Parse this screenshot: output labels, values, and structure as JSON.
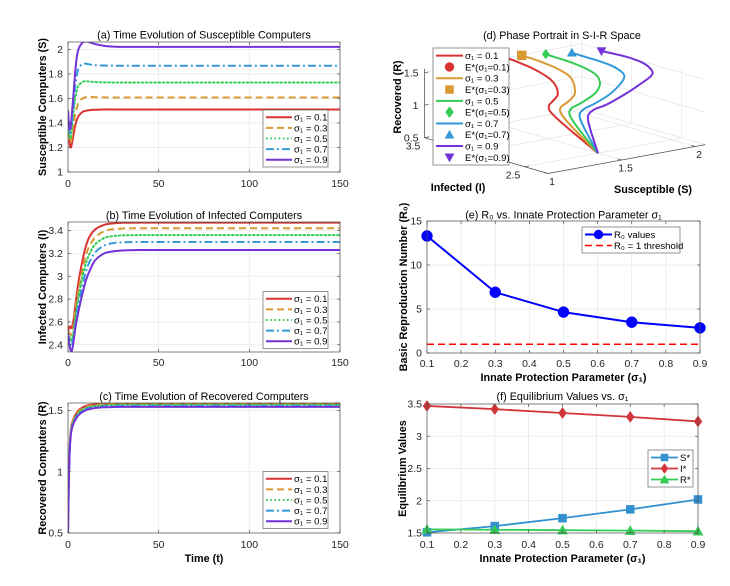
{
  "chart_data": [
    {
      "panel": "a",
      "type": "line",
      "title": "(a) Time Evolution of Susceptible Computers",
      "xlabel": "",
      "ylabel": "Susceptible Computers (S)",
      "xlim": [
        0,
        150
      ],
      "ylim": [
        1,
        2.06
      ],
      "xticks": [
        0,
        50,
        100,
        150
      ],
      "xtick_labels": [
        "0",
        "50",
        "100",
        "150"
      ],
      "yticks": [
        1,
        1.2,
        1.4,
        1.6,
        1.8,
        2
      ],
      "ytick_labels": [
        "1",
        "1.2",
        "1.4",
        "1.6",
        "1.8",
        "2"
      ],
      "grid": true,
      "legend_position": "bottom-right",
      "x": [
        0,
        0.5,
        1,
        1.5,
        2,
        3,
        4,
        5,
        6,
        8,
        10,
        12,
        15,
        20,
        25,
        30,
        40,
        60,
        100,
        150
      ],
      "series": [
        {
          "name": "σ₁ = 0.1",
          "color": "#d93333",
          "style": "solid",
          "values": [
            1.5,
            1.31,
            1.22,
            1.2,
            1.22,
            1.3,
            1.38,
            1.43,
            1.46,
            1.49,
            1.5,
            1.505,
            1.508,
            1.51,
            1.51,
            1.51,
            1.51,
            1.51,
            1.51,
            1.51
          ]
        },
        {
          "name": "σ₁ = 0.3",
          "color": "#d99933",
          "style": "dashed",
          "values": [
            1.5,
            1.33,
            1.25,
            1.24,
            1.28,
            1.38,
            1.47,
            1.53,
            1.57,
            1.6,
            1.61,
            1.612,
            1.61,
            1.608,
            1.607,
            1.607,
            1.607,
            1.607,
            1.607,
            1.607
          ]
        },
        {
          "name": "σ₁ = 0.5",
          "color": "#33cc55",
          "style": "dotted",
          "values": [
            1.5,
            1.35,
            1.28,
            1.28,
            1.34,
            1.48,
            1.6,
            1.67,
            1.71,
            1.735,
            1.74,
            1.737,
            1.733,
            1.731,
            1.73,
            1.73,
            1.73,
            1.73,
            1.73,
            1.73
          ]
        },
        {
          "name": "σ₁ = 0.7",
          "color": "#3399d9",
          "style": "dashdot",
          "values": [
            1.5,
            1.38,
            1.32,
            1.33,
            1.4,
            1.55,
            1.7,
            1.8,
            1.85,
            1.882,
            1.883,
            1.877,
            1.871,
            1.868,
            1.867,
            1.866,
            1.866,
            1.866,
            1.866,
            1.866
          ]
        },
        {
          "name": "σ₁ = 0.9",
          "color": "#7333d9",
          "style": "solid",
          "values": [
            1.5,
            1.4,
            1.35,
            1.37,
            1.45,
            1.63,
            1.82,
            1.95,
            2.01,
            2.055,
            2.064,
            2.058,
            2.043,
            2.028,
            2.022,
            2.02,
            2.02,
            2.02,
            2.02,
            2.02
          ]
        }
      ]
    },
    {
      "panel": "b",
      "type": "line",
      "title": "(b) Time Evolution of Infected Computers",
      "xlabel": "",
      "ylabel": "Infected Computers (I)",
      "xlim": [
        0,
        150
      ],
      "ylim": [
        2.337,
        3.475
      ],
      "xticks": [
        0,
        50,
        100,
        150
      ],
      "xtick_labels": [
        "0",
        "50",
        "100",
        "150"
      ],
      "yticks": [
        2.4,
        2.6,
        2.8,
        3,
        3.2,
        3.4
      ],
      "ytick_labels": [
        "2.4",
        "2.6",
        "2.8",
        "3",
        "3.2",
        "3.4"
      ],
      "grid": true,
      "legend_position": "bottom-right",
      "x": [
        0,
        0.5,
        1,
        1.5,
        2,
        3,
        4,
        5,
        6,
        8,
        10,
        12,
        15,
        20,
        25,
        30,
        40,
        60,
        100,
        150
      ],
      "series": [
        {
          "name": "σ₁ = 0.1",
          "color": "#d93333",
          "style": "solid",
          "values": [
            2.5,
            2.55,
            2.56,
            2.55,
            2.55,
            2.61,
            2.74,
            2.86,
            2.97,
            3.14,
            3.27,
            3.35,
            3.41,
            3.45,
            3.463,
            3.468,
            3.47,
            3.47,
            3.47,
            3.47
          ]
        },
        {
          "name": "σ₁ = 0.3",
          "color": "#d99933",
          "style": "dashed",
          "values": [
            2.5,
            2.51,
            2.5,
            2.49,
            2.49,
            2.56,
            2.69,
            2.8,
            2.9,
            3.06,
            3.19,
            3.27,
            3.34,
            3.395,
            3.412,
            3.418,
            3.42,
            3.42,
            3.42,
            3.42
          ]
        },
        {
          "name": "σ₁ = 0.5",
          "color": "#33cc55",
          "style": "dotted",
          "values": [
            2.5,
            2.48,
            2.46,
            2.44,
            2.44,
            2.51,
            2.63,
            2.74,
            2.84,
            3.0,
            3.12,
            3.2,
            3.28,
            3.335,
            3.352,
            3.358,
            3.36,
            3.36,
            3.36,
            3.36
          ]
        },
        {
          "name": "σ₁ = 0.7",
          "color": "#3399d9",
          "style": "dashdot",
          "values": [
            2.5,
            2.46,
            2.42,
            2.39,
            2.39,
            2.46,
            2.58,
            2.68,
            2.77,
            2.92,
            3.05,
            3.13,
            3.21,
            3.27,
            3.29,
            3.297,
            3.3,
            3.3,
            3.3,
            3.3
          ]
        },
        {
          "name": "σ₁ = 0.9",
          "color": "#7333d9",
          "style": "solid",
          "values": [
            2.5,
            2.43,
            2.38,
            2.35,
            2.34,
            2.42,
            2.54,
            2.63,
            2.71,
            2.85,
            2.97,
            3.05,
            3.14,
            3.2,
            3.218,
            3.226,
            3.23,
            3.23,
            3.23,
            3.23
          ]
        }
      ]
    },
    {
      "panel": "c",
      "type": "line",
      "title": "(c) Time Evolution of Recovered Computers",
      "xlabel": "Time (t)",
      "ylabel": "Recovered Computers (R)",
      "xlim": [
        0,
        150
      ],
      "ylim": [
        0.5,
        1.56
      ],
      "xticks": [
        0,
        50,
        100,
        150
      ],
      "xtick_labels": [
        "0",
        "50",
        "100",
        "150"
      ],
      "yticks": [
        0.5,
        1,
        1.5
      ],
      "ytick_labels": [
        "0.5",
        "1",
        "1.5"
      ],
      "grid": true,
      "legend_position": "bottom-right",
      "x": [
        0,
        0.5,
        1,
        1.5,
        2,
        3,
        4,
        5,
        6,
        8,
        10,
        12,
        15,
        20,
        25,
        30,
        40,
        60,
        100,
        150
      ],
      "series": [
        {
          "name": "σ₁ = 0.1",
          "color": "#d93333",
          "style": "solid",
          "values": [
            0.5,
            0.98,
            1.22,
            1.33,
            1.38,
            1.43,
            1.46,
            1.485,
            1.503,
            1.523,
            1.537,
            1.545,
            1.55,
            1.554,
            1.556,
            1.556,
            1.556,
            1.556,
            1.556,
            1.556
          ]
        },
        {
          "name": "σ₁ = 0.3",
          "color": "#d99933",
          "style": "dashed",
          "values": [
            0.5,
            0.97,
            1.21,
            1.32,
            1.37,
            1.42,
            1.45,
            1.475,
            1.493,
            1.514,
            1.528,
            1.537,
            1.543,
            1.548,
            1.55,
            1.55,
            1.55,
            1.55,
            1.55,
            1.55
          ]
        },
        {
          "name": "σ₁ = 0.5",
          "color": "#33cc55",
          "style": "dotted",
          "values": [
            0.5,
            0.96,
            1.2,
            1.31,
            1.36,
            1.41,
            1.44,
            1.465,
            1.483,
            1.505,
            1.52,
            1.529,
            1.536,
            1.542,
            1.544,
            1.545,
            1.545,
            1.545,
            1.545,
            1.545
          ]
        },
        {
          "name": "σ₁ = 0.7",
          "color": "#3399d9",
          "style": "dashdot",
          "values": [
            0.5,
            0.95,
            1.19,
            1.3,
            1.35,
            1.4,
            1.43,
            1.455,
            1.473,
            1.496,
            1.511,
            1.52,
            1.528,
            1.534,
            1.536,
            1.537,
            1.537,
            1.537,
            1.537,
            1.537
          ]
        },
        {
          "name": "σ₁ = 0.9",
          "color": "#7333d9",
          "style": "solid",
          "values": [
            0.5,
            0.94,
            1.18,
            1.29,
            1.34,
            1.39,
            1.42,
            1.445,
            1.463,
            1.487,
            1.502,
            1.511,
            1.519,
            1.525,
            1.527,
            1.528,
            1.528,
            1.528,
            1.528,
            1.528
          ]
        }
      ]
    },
    {
      "panel": "d",
      "type": "line3d",
      "title": "(d) Phase Portrait in S-I-R Space",
      "xlabel": "Susceptible (S)",
      "ylabel": "Infected (I)",
      "zlabel": "Recovered (R)",
      "xlim": [
        1,
        2.07
      ],
      "ylim": [
        2.265,
        3.5
      ],
      "zlim": [
        0.5,
        1.56
      ],
      "xticks": [
        1,
        1.5,
        2
      ],
      "xtick_labels": [
        "1",
        "1.5",
        "2"
      ],
      "yticks": [
        2.5,
        3,
        3.5
      ],
      "ytick_labels": [
        "2.5",
        "",
        "3.5"
      ],
      "zticks": [
        0.5,
        1,
        1.5
      ],
      "ztick_labels": [
        "0.5",
        "1",
        "1.5"
      ],
      "grid": true,
      "legend_position": "top-left",
      "initial_point": {
        "S": 1.5,
        "I": 2.5,
        "R": 0.5
      },
      "series": [
        {
          "name": "σ₁ = 0.1",
          "color": "#d93333",
          "equilibrium": {
            "label": "E*(σ₁=0.1)",
            "marker": "circle",
            "S": 1.51,
            "I": 3.47,
            "R": 1.556
          }
        },
        {
          "name": "σ₁ = 0.3",
          "color": "#d99933",
          "equilibrium": {
            "label": "E*(σ₁=0.3)",
            "marker": "square",
            "S": 1.607,
            "I": 3.42,
            "R": 1.55
          }
        },
        {
          "name": "σ₁ = 0.5",
          "color": "#33cc55",
          "equilibrium": {
            "label": "E*(σ₁=0.5)",
            "marker": "diamond",
            "S": 1.73,
            "I": 3.36,
            "R": 1.545
          }
        },
        {
          "name": "σ₁ = 0.7",
          "color": "#3399d9",
          "equilibrium": {
            "label": "E*(σ₁=0.7)",
            "marker": "triangle-up",
            "S": 1.866,
            "I": 3.3,
            "R": 1.537
          }
        },
        {
          "name": "σ₁ = 0.9",
          "color": "#7333d9",
          "equilibrium": {
            "label": "E*(σ₁=0.9)",
            "marker": "triangle-down",
            "S": 2.02,
            "I": 3.23,
            "R": 1.528
          }
        }
      ]
    },
    {
      "panel": "e",
      "type": "line",
      "title": "(e) R₀ vs. Innate Protection Parameter σ₁",
      "xlabel": "Innate Protection Parameter (σ₁)",
      "ylabel": "Basic Reproduction Number (R₀)",
      "xlim": [
        0.1,
        0.9
      ],
      "ylim": [
        0,
        15
      ],
      "xticks": [
        0.1,
        0.2,
        0.3,
        0.4,
        0.5,
        0.6,
        0.7,
        0.8,
        0.9
      ],
      "xtick_labels": [
        "0.1",
        "0.2",
        "0.3",
        "0.4",
        "0.5",
        "0.6",
        "0.7",
        "0.8",
        "0.9"
      ],
      "yticks": [
        0,
        5,
        10,
        15
      ],
      "ytick_labels": [
        "0",
        "5",
        "10",
        "15"
      ],
      "grid": true,
      "legend_position": "top-right",
      "x": [
        0.1,
        0.3,
        0.5,
        0.7,
        0.9
      ],
      "series": [
        {
          "name": "R₀ values",
          "color": "#0000ff",
          "style": "solid",
          "marker": "circle",
          "values": [
            13.3,
            6.9,
            4.65,
            3.5,
            2.85
          ]
        },
        {
          "name": "R₀ = 1 threshold",
          "color": "#ff0000",
          "style": "dashed",
          "kind": "hline",
          "value": 1
        }
      ]
    },
    {
      "panel": "f",
      "type": "line",
      "title": "(f) Equilibrium Values vs. σ₁",
      "xlabel": "Innate Protection Parameter (σ₁)",
      "ylabel": "Equilibrium Values",
      "xlim": [
        0.1,
        0.9
      ],
      "ylim": [
        1.5,
        3.5
      ],
      "xticks": [
        0.1,
        0.2,
        0.3,
        0.4,
        0.5,
        0.6,
        0.7,
        0.8,
        0.9
      ],
      "xtick_labels": [
        "0.1",
        "0.2",
        "0.3",
        "0.4",
        "0.5",
        "0.6",
        "0.7",
        "0.8",
        "0.9"
      ],
      "yticks": [
        1.5,
        2,
        2.5,
        3,
        3.5
      ],
      "ytick_labels": [
        "1.5",
        "2",
        "2.5",
        "3",
        "3.5"
      ],
      "grid": true,
      "legend_position": "right",
      "x": [
        0.1,
        0.3,
        0.5,
        0.7,
        0.9
      ],
      "series": [
        {
          "name": "S*",
          "color": "#3391d1",
          "style": "solid",
          "marker": "square",
          "values": [
            1.51,
            1.607,
            1.73,
            1.866,
            2.02
          ]
        },
        {
          "name": "I*",
          "color": "#d13538",
          "style": "solid",
          "marker": "diamond",
          "values": [
            3.47,
            3.42,
            3.36,
            3.3,
            3.23
          ]
        },
        {
          "name": "R*",
          "color": "#33cc55",
          "style": "solid",
          "marker": "triangle-up",
          "values": [
            1.556,
            1.55,
            1.545,
            1.537,
            1.528
          ]
        }
      ]
    }
  ]
}
